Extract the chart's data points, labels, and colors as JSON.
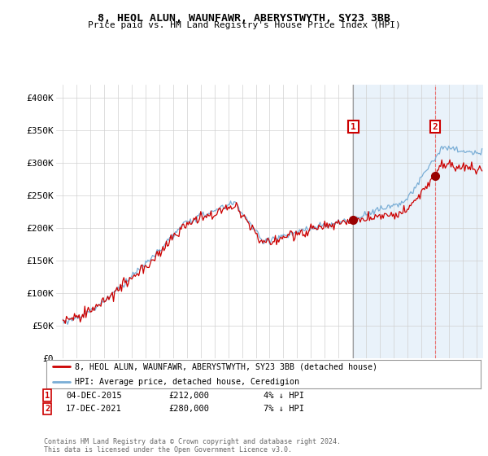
{
  "title": "8, HEOL ALUN, WAUNFAWR, ABERYSTWYTH, SY23 3BB",
  "subtitle": "Price paid vs. HM Land Registry's House Price Index (HPI)",
  "legend_entry1": "8, HEOL ALUN, WAUNFAWR, ABERYSTWYTH, SY23 3BB (detached house)",
  "legend_entry2": "HPI: Average price, detached house, Ceredigion",
  "annotation1_date": "04-DEC-2015",
  "annotation1_price": "£212,000",
  "annotation1_pct": "4% ↓ HPI",
  "annotation2_date": "17-DEC-2021",
  "annotation2_price": "£280,000",
  "annotation2_pct": "7% ↓ HPI",
  "sale1_x": 2016.08,
  "sale1_y": 212000,
  "sale2_x": 2022.0,
  "sale2_y": 280000,
  "line_color_red": "#cc0000",
  "line_color_blue": "#7aaed6",
  "shade_color": "#d0e4f5",
  "bg_color": "#ffffff",
  "grid_color": "#d0d0d0",
  "footnote": "Contains HM Land Registry data © Crown copyright and database right 2024.\nThis data is licensed under the Open Government Licence v3.0.",
  "xlim_start": 1994.5,
  "xlim_end": 2025.5,
  "ylim": [
    0,
    420000
  ],
  "yticks": [
    0,
    50000,
    100000,
    150000,
    200000,
    250000,
    300000,
    350000,
    400000
  ],
  "ytick_labels": [
    "£0",
    "£50K",
    "£100K",
    "£150K",
    "£200K",
    "£250K",
    "£300K",
    "£350K",
    "£400K"
  ]
}
